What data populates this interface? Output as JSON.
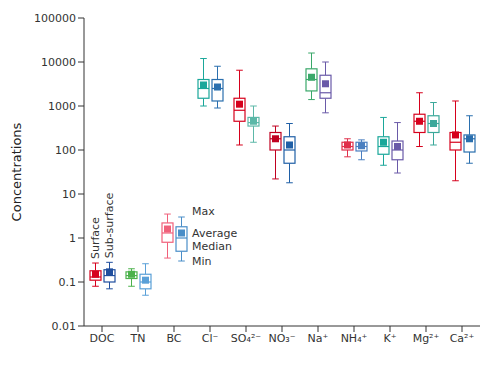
{
  "chart_data": {
    "type": "box",
    "y_label": "Concentrations",
    "log": "y",
    "grid": false,
    "ylim": [
      0.01,
      100000
    ],
    "yticks": [
      0.01,
      0.1,
      1,
      10,
      100,
      1000,
      10000,
      100000
    ],
    "categories": [
      "DOC",
      "TN",
      "BC",
      "Cl⁻",
      "SO₄²⁻",
      "NO₃⁻",
      "Na⁺",
      "NH₄⁺",
      "K⁺",
      "Mg²⁺",
      "Ca²⁺"
    ],
    "box_labels": {
      "max": "Max",
      "mean": "Average",
      "median": "Median",
      "min": "Min"
    },
    "series": [
      {
        "name": "Surface",
        "colors": [
          "#d6001c",
          "#4cb24c",
          "#f0607a",
          "#1aa79a",
          "#d6001c",
          "#c00020",
          "#3aa86a",
          "#e0304a",
          "#1aa79a",
          "#d6001c",
          "#d6001c"
        ],
        "min": [
          0.08,
          0.08,
          0.35,
          1000,
          130,
          22,
          1400,
          70,
          45,
          120,
          20
        ],
        "q1": [
          0.11,
          0.12,
          0.8,
          1500,
          450,
          100,
          2200,
          100,
          80,
          250,
          100
        ],
        "median": [
          0.13,
          0.14,
          1.3,
          2500,
          800,
          180,
          4000,
          120,
          120,
          450,
          150
        ],
        "q3": [
          0.18,
          0.17,
          2.2,
          4000,
          1500,
          250,
          7000,
          150,
          200,
          650,
          250
        ],
        "max": [
          0.27,
          0.2,
          3.5,
          12000,
          6500,
          350,
          16000,
          180,
          550,
          2000,
          1300
        ],
        "mean": [
          0.15,
          0.15,
          1.6,
          3000,
          1100,
          180,
          4500,
          130,
          150,
          450,
          220
        ]
      },
      {
        "name": "Sub-surface",
        "colors": [
          "#1f4e9e",
          "#5aa0d8",
          "#4a8ec8",
          "#2a6fae",
          "#5cb8a8",
          "#1f5fa6",
          "#6a5aa8",
          "#4a7fc0",
          "#6a5aa8",
          "#3aa89a",
          "#2a6fae"
        ],
        "min": [
          0.07,
          0.05,
          0.3,
          900,
          150,
          18,
          700,
          60,
          30,
          130,
          50
        ],
        "q1": [
          0.1,
          0.07,
          0.5,
          1300,
          350,
          50,
          1500,
          95,
          60,
          250,
          90
        ],
        "median": [
          0.14,
          0.1,
          1.0,
          2500,
          420,
          100,
          2000,
          120,
          100,
          400,
          180
        ],
        "q3": [
          0.19,
          0.15,
          1.8,
          4000,
          550,
          200,
          5000,
          150,
          160,
          600,
          220
        ],
        "max": [
          0.28,
          0.26,
          3,
          8000,
          1000,
          400,
          10000,
          170,
          420,
          1200,
          600
        ],
        "mean": [
          0.17,
          0.11,
          1.3,
          2700,
          450,
          130,
          3200,
          125,
          120,
          400,
          180
        ]
      }
    ]
  }
}
